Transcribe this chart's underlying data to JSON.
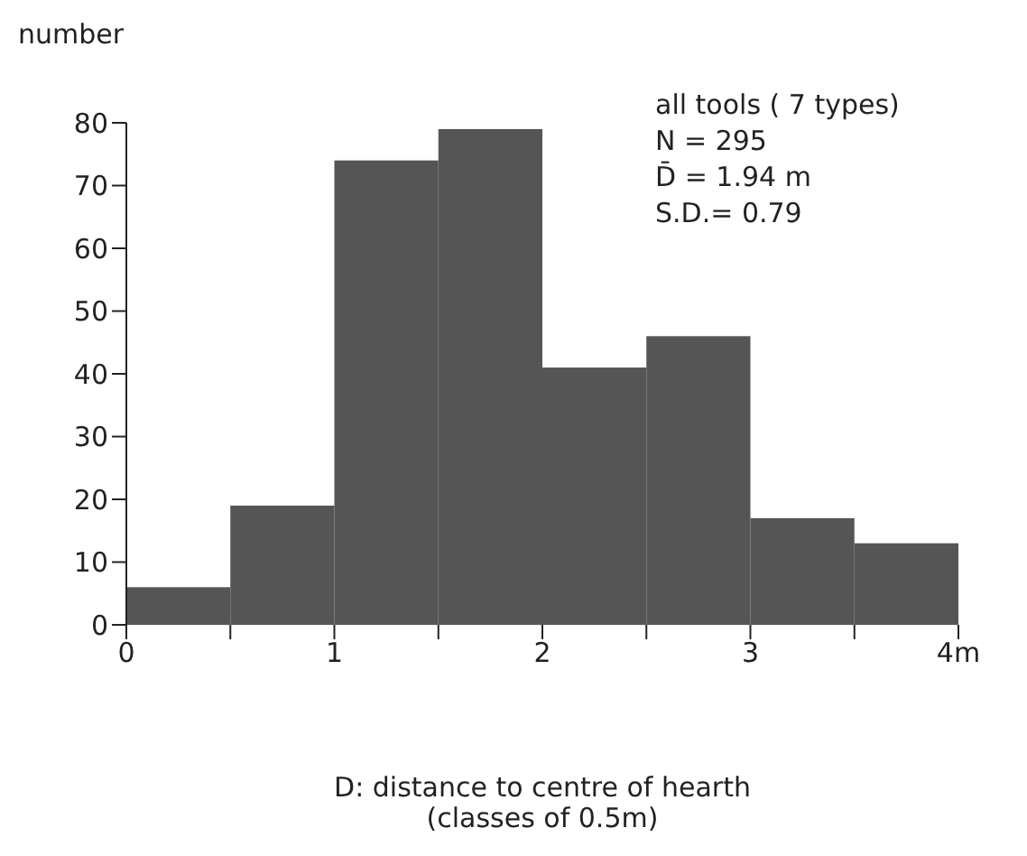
{
  "chart_data": {
    "type": "histogram",
    "ylabel": "number",
    "xlabel": "D: distance to centre of hearth\n(classes of 0.5m)",
    "annotations": [
      "all tools ( 7 types)",
      "N = 295",
      "D̄ = 1.94 m",
      "S.D.= 0.79"
    ],
    "bins": [
      0,
      0.5,
      1,
      1.5,
      2,
      2.5,
      3,
      3.5,
      4
    ],
    "values": [
      6,
      19,
      74,
      79,
      41,
      46,
      17,
      13
    ],
    "color": "#555555",
    "xlim": [
      0,
      4
    ],
    "xticks": [
      0,
      {
        "value": 0.5,
        "label": null
      },
      1,
      {
        "value": 1.5,
        "label": null
      },
      2,
      {
        "value": 2.5,
        "label": null
      },
      3,
      {
        "value": 3.5,
        "label": null
      },
      {
        "value": 4,
        "label": "4m"
      }
    ],
    "ylim": [
      0,
      80
    ],
    "yticks": [
      0,
      10,
      20,
      30,
      40,
      50,
      60,
      70,
      80
    ],
    "grid": false,
    "legend": false
  }
}
